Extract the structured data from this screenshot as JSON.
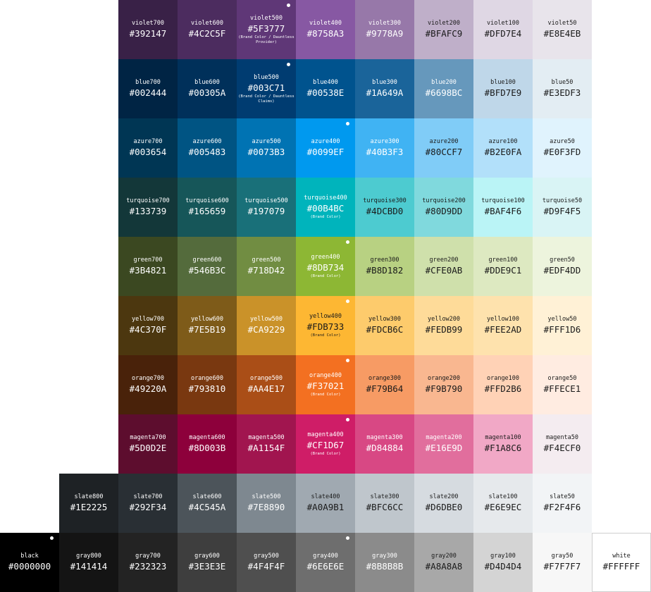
{
  "rows": [
    {
      "family": "violet",
      "cells": [
        {
          "name": "violet700",
          "hex": "#392147"
        },
        {
          "name": "violet600",
          "hex": "#4C2C5F"
        },
        {
          "name": "violet500",
          "hex": "#5F3777",
          "note": "(Brand Color / Dauntless Provider)",
          "marked": true
        },
        {
          "name": "violet400",
          "hex": "#8758A3"
        },
        {
          "name": "violet300",
          "hex": "#9778A9"
        },
        {
          "name": "violet200",
          "hex": "#BFAFC9"
        },
        {
          "name": "violet100",
          "hex": "#DFD7E4"
        },
        {
          "name": "violet50",
          "hex": "#E8E4EB"
        }
      ]
    },
    {
      "family": "blue",
      "cells": [
        {
          "name": "blue700",
          "hex": "#002444"
        },
        {
          "name": "blue600",
          "hex": "#00305A"
        },
        {
          "name": "blue500",
          "hex": "#003C71",
          "note": "(Brand Color / Dauntless Claims)",
          "marked": true
        },
        {
          "name": "blue400",
          "hex": "#00538E"
        },
        {
          "name": "blue300",
          "hex": "#1A649A"
        },
        {
          "name": "blue200",
          "hex": "#6698BC"
        },
        {
          "name": "blue100",
          "hex": "#BFD7E9"
        },
        {
          "name": "blue50",
          "hex": "#E3EDF3"
        }
      ]
    },
    {
      "family": "azure",
      "cells": [
        {
          "name": "azure700",
          "hex": "#003654"
        },
        {
          "name": "azure600",
          "hex": "#005483"
        },
        {
          "name": "azure500",
          "hex": "#0073B3"
        },
        {
          "name": "azure400",
          "hex": "#0099EF",
          "marked": true
        },
        {
          "name": "azure300",
          "hex": "#40B3F3"
        },
        {
          "name": "azure200",
          "hex": "#80CCF7"
        },
        {
          "name": "azure100",
          "hex": "#B2E0FA"
        },
        {
          "name": "azure50",
          "hex": "#E0F3FD"
        }
      ]
    },
    {
      "family": "turquoise",
      "cells": [
        {
          "name": "turquoise700",
          "hex": "#133739"
        },
        {
          "name": "turquoise600",
          "hex": "#165659"
        },
        {
          "name": "turquoise500",
          "hex": "#197079"
        },
        {
          "name": "turquoise400",
          "hex": "#00B4BC",
          "note": "(Brand Color)"
        },
        {
          "name": "turquoise300",
          "hex": "#4DCBD0"
        },
        {
          "name": "turquoise200",
          "hex": "#80D9DD"
        },
        {
          "name": "turquoise100",
          "hex": "#BAF4F6"
        },
        {
          "name": "turquoise50",
          "hex": "#D9F4F5"
        }
      ]
    },
    {
      "family": "green",
      "cells": [
        {
          "name": "green700",
          "hex": "#3B4821"
        },
        {
          "name": "green600",
          "hex": "#546B3C"
        },
        {
          "name": "green500",
          "hex": "#718D42"
        },
        {
          "name": "green400",
          "hex": "#8DB734",
          "note": "(Brand Color)",
          "marked": true
        },
        {
          "name": "green300",
          "hex": "#B8D182"
        },
        {
          "name": "green200",
          "hex": "#CFE0AB"
        },
        {
          "name": "green100",
          "hex": "#DDE9C1"
        },
        {
          "name": "green50",
          "hex": "#EDF4DD"
        }
      ]
    },
    {
      "family": "yellow",
      "cells": [
        {
          "name": "yellow700",
          "hex": "#4C370F"
        },
        {
          "name": "yellow600",
          "hex": "#7E5B19"
        },
        {
          "name": "yellow500",
          "hex": "#CA9229"
        },
        {
          "name": "yellow400",
          "hex": "#FDB733",
          "note": "(Brand Color)",
          "marked": true
        },
        {
          "name": "yellow300",
          "hex": "#FDCB6C"
        },
        {
          "name": "yellow200",
          "hex": "#FEDB99"
        },
        {
          "name": "yellow100",
          "hex": "#FEE2AD"
        },
        {
          "name": "yellow50",
          "hex": "#FFF1D6"
        }
      ]
    },
    {
      "family": "orange",
      "cells": [
        {
          "name": "orange700",
          "hex": "#49220A"
        },
        {
          "name": "orange600",
          "hex": "#793810"
        },
        {
          "name": "orange500",
          "hex": "#AA4E17"
        },
        {
          "name": "orange400",
          "hex": "#F37021",
          "note": "(Brand Color)",
          "marked": true
        },
        {
          "name": "orange300",
          "hex": "#F79B64"
        },
        {
          "name": "orange200",
          "hex": "#F9B790"
        },
        {
          "name": "orange100",
          "hex": "#FFD2B6"
        },
        {
          "name": "orange50",
          "hex": "#FFECE1"
        }
      ]
    },
    {
      "family": "magenta",
      "cells": [
        {
          "name": "magenta700",
          "hex": "#5D0D2E"
        },
        {
          "name": "magenta600",
          "hex": "#8D003B"
        },
        {
          "name": "magenta500",
          "hex": "#A1154F"
        },
        {
          "name": "magenta400",
          "hex": "#CF1D67",
          "note": "(Brand Color)",
          "marked": true
        },
        {
          "name": "magenta300",
          "hex": "#D84884"
        },
        {
          "name": "magenta200",
          "hex": "#E16E9D"
        },
        {
          "name": "magenta100",
          "hex": "#F1A8C6"
        },
        {
          "name": "magenta50",
          "hex": "#F4ECF0"
        }
      ]
    },
    {
      "family": "slate",
      "cells": [
        {
          "name": "slate800",
          "hex": "#1E2225"
        },
        {
          "name": "slate700",
          "hex": "#292F34"
        },
        {
          "name": "slate600",
          "hex": "#4C545A"
        },
        {
          "name": "slate500",
          "hex": "#7E8890"
        },
        {
          "name": "slate400",
          "hex": "#A0A9B1"
        },
        {
          "name": "slate300",
          "hex": "#BFC6CC"
        },
        {
          "name": "slate200",
          "hex": "#D6DBE0"
        },
        {
          "name": "slate100",
          "hex": "#E6E9EC"
        },
        {
          "name": "slate50",
          "hex": "#F2F4F6"
        }
      ]
    },
    {
      "family": "gray",
      "cells": [
        {
          "name": "black",
          "hex": "#0000000",
          "swatch": "#000000",
          "marked": true
        },
        {
          "name": "gray800",
          "hex": "#141414"
        },
        {
          "name": "gray700",
          "hex": "#232323"
        },
        {
          "name": "gray600",
          "hex": "#3E3E3E"
        },
        {
          "name": "gray500",
          "hex": "#4F4F4F"
        },
        {
          "name": "gray400",
          "hex": "#6E6E6E",
          "marked": true
        },
        {
          "name": "gray300",
          "hex": "#8B8B8B"
        },
        {
          "name": "gray200",
          "hex": "#A8A8A8"
        },
        {
          "name": "gray100",
          "hex": "#D4D4D4"
        },
        {
          "name": "gray50",
          "hex": "#F7F7F7"
        },
        {
          "name": "white",
          "hex": "#FFFFFF"
        }
      ]
    }
  ]
}
